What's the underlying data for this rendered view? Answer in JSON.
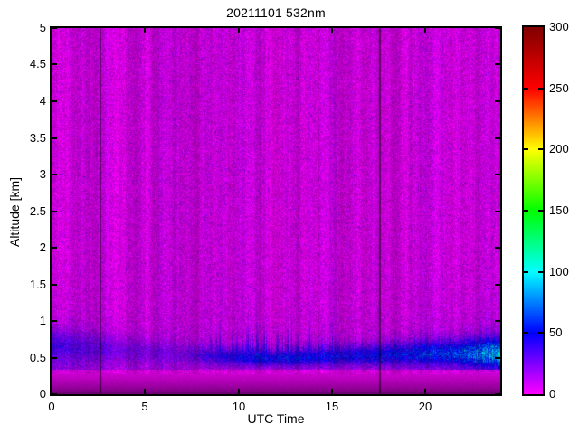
{
  "chart_data": {
    "type": "heatmap",
    "title": "20211101 532nm",
    "xlabel": "UTC Time",
    "ylabel": "Altitude [km]",
    "xlim": [
      0,
      24
    ],
    "ylim": [
      0,
      5
    ],
    "xticks": [
      0,
      5,
      10,
      15,
      20
    ],
    "yticks": [
      0,
      0.5,
      1,
      1.5,
      2,
      2.5,
      3,
      3.5,
      4,
      4.5,
      5
    ],
    "grid": false,
    "legend": "none",
    "colorbar": {
      "min": 0,
      "max": 300,
      "ticks": [
        0,
        50,
        100,
        150,
        200,
        250,
        300
      ],
      "position": "right",
      "colormap_stops": [
        [
          0,
          "#FF00FF"
        ],
        [
          50,
          "#0000FF"
        ],
        [
          100,
          "#00FFFF"
        ],
        [
          150,
          "#00FF00"
        ],
        [
          200,
          "#FFFF00"
        ],
        [
          250,
          "#FF0000"
        ],
        [
          300,
          "#800000"
        ]
      ]
    },
    "features": {
      "description": "Lidar backscatter time-height plot: magenta background noise field; blue boundary-layer aerosol below ~1 km strongest 9-24 UTC; bright magenta band near 0.3 km; dark purple surface band below 0.27 km; dark data-gap columns at 2.6 and 17.6 UTC",
      "data_gap_times_utc": [
        2.62,
        17.58
      ],
      "surface_band_top_km": 0.27,
      "bright_band_km": [
        0.27,
        0.335
      ],
      "aerosol_layer_top_km_range": [
        0.5,
        1.0
      ],
      "background_noise_level": 8
    },
    "render": {
      "seed": 1337,
      "noise_base": 1.0,
      "noise_scale": 3.5,
      "speckle": 0.3,
      "col_value_wiggle": 3.0,
      "col_bright_amp": 0.14,
      "gap_times": [
        2.62,
        17.58
      ],
      "gap_halfwidth": 0.045,
      "gap_darken": 0.5,
      "surface_top_km": 0.27,
      "surface_color_top": "#C900CE",
      "surface_color_bottom": "#5C0063",
      "bright_band_km": [
        0.27,
        0.335
      ],
      "bright_band_factor": 0.12,
      "layer_amp": [
        [
          0,
          26
        ],
        [
          2,
          19
        ],
        [
          4,
          15
        ],
        [
          7,
          14
        ],
        [
          9,
          30
        ],
        [
          11,
          40
        ],
        [
          13,
          42
        ],
        [
          15,
          37
        ],
        [
          17,
          40
        ],
        [
          19,
          42
        ],
        [
          21,
          46
        ],
        [
          22.5,
          52
        ],
        [
          24,
          62
        ]
      ],
      "layer_center": [
        [
          0,
          0.66
        ],
        [
          4,
          0.6
        ],
        [
          8,
          0.52
        ],
        [
          12,
          0.48
        ],
        [
          16,
          0.52
        ],
        [
          20,
          0.55
        ],
        [
          24,
          0.56
        ]
      ],
      "layer_width": [
        [
          0,
          0.24
        ],
        [
          4,
          0.18
        ],
        [
          8,
          0.13
        ],
        [
          12,
          0.11
        ],
        [
          16,
          0.13
        ],
        [
          20,
          0.16
        ],
        [
          24,
          0.2
        ]
      ],
      "spike_amp": [
        [
          0,
          0.04
        ],
        [
          8,
          0.08
        ],
        [
          9,
          0.22
        ],
        [
          14,
          0.28
        ],
        [
          16,
          0.1
        ],
        [
          24,
          0.08
        ]
      ],
      "haze_amp": [
        [
          0,
          14
        ],
        [
          3,
          9
        ],
        [
          8,
          6
        ],
        [
          12,
          8
        ],
        [
          16,
          8
        ],
        [
          18,
          10
        ],
        [
          21,
          12
        ],
        [
          24,
          16
        ]
      ],
      "streak_start_utc": 21.5,
      "streak_center_km": 0.5,
      "streak_sigma_km": 0.16,
      "streak_max": 35
    }
  }
}
